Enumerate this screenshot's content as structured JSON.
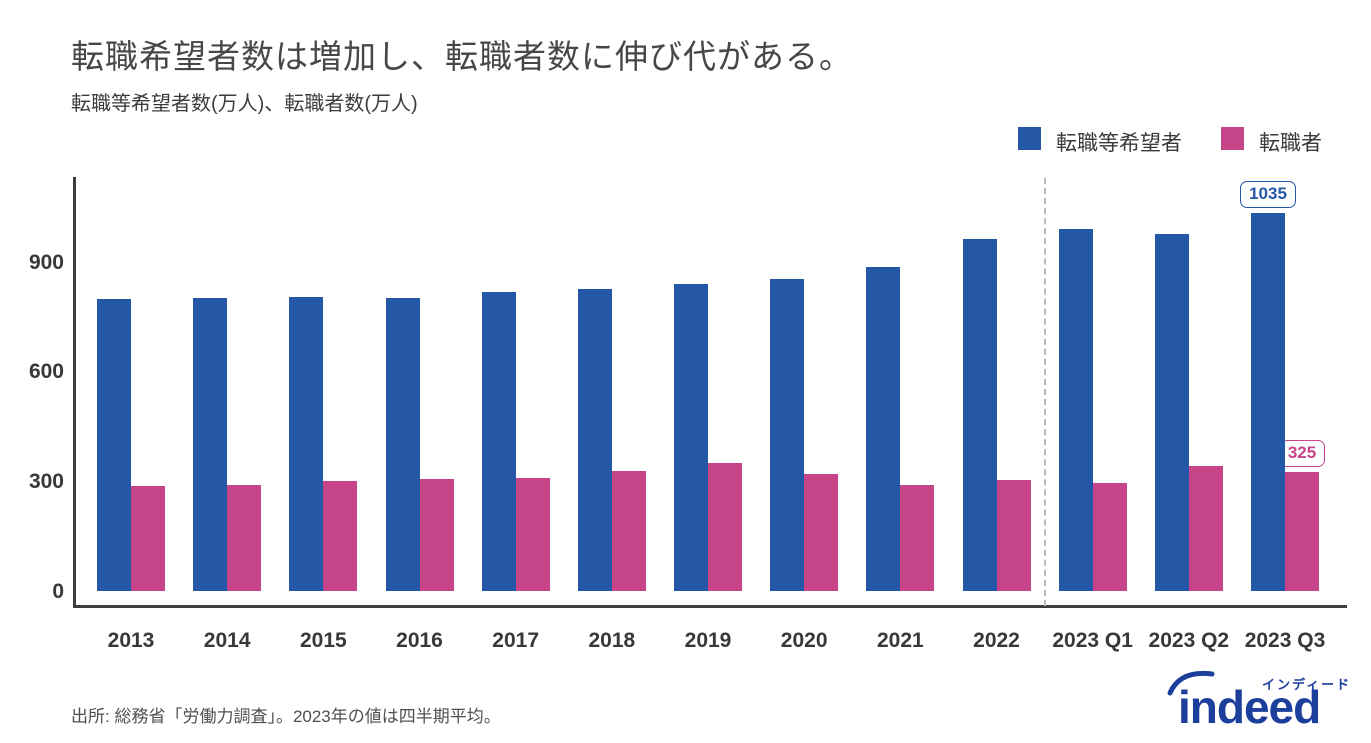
{
  "header": {
    "title": "転職希望者数は増加し、転職者数に伸び代がある。",
    "subtitle": "転職等希望者数(万人)、転職者数(万人)"
  },
  "legend": [
    {
      "label": "転職等希望者",
      "color": "#2557a7"
    },
    {
      "label": "転職者",
      "color": "#c64589"
    }
  ],
  "chart_data": {
    "type": "bar",
    "title": "転職希望者数は増加し、転職者数に伸び代がある。",
    "ylabel": "転職等希望者数(万人)、転職者数(万人)",
    "categories": [
      "2013",
      "2014",
      "2015",
      "2016",
      "2017",
      "2018",
      "2019",
      "2020",
      "2021",
      "2022",
      "2023 Q1",
      "2023 Q2",
      "2023 Q3"
    ],
    "series": [
      {
        "name": "転職等希望者",
        "color": "#2557a7",
        "values": [
          800,
          803,
          804,
          801,
          820,
          827,
          840,
          855,
          887,
          965,
          990,
          977,
          1035
        ]
      },
      {
        "name": "転職者",
        "color": "#c64589",
        "values": [
          287,
          291,
          300,
          306,
          310,
          328,
          351,
          321,
          289,
          303,
          296,
          342,
          325
        ]
      }
    ],
    "yticks": [
      0,
      300,
      600,
      900
    ],
    "ylim": [
      0,
      1150
    ],
    "grid": false,
    "legend_position": "top-right",
    "separator_before_category": "2023 Q1",
    "annotations": [
      {
        "series_index": 0,
        "category": "2023 Q3",
        "label": "1035"
      },
      {
        "series_index": 1,
        "category": "2023 Q3",
        "label": "325"
      }
    ]
  },
  "footer": {
    "source": "出所: 総務省「労働力調査」。2023年の値は四半期平均。"
  },
  "logo": {
    "word": "indeed",
    "kana": "インディード"
  }
}
